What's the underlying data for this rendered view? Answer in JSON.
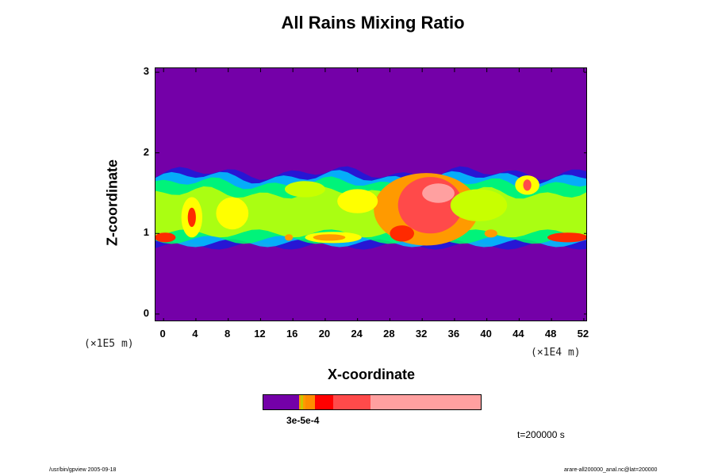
{
  "chart_data": {
    "type": "heatmap",
    "title": "All Rains Mixing Ratio",
    "xlabel": "X-coordinate",
    "ylabel": "Z-coordinate",
    "x_unit": "(×1E4 m)",
    "y_unit": "(×1E5 m)",
    "x_ticks": [
      0,
      4,
      8,
      12,
      16,
      20,
      24,
      28,
      32,
      36,
      40,
      44,
      48,
      52
    ],
    "y_ticks": [
      0,
      1,
      2,
      3
    ],
    "xlim": [
      -1,
      52.5
    ],
    "ylim": [
      -0.1,
      3.05
    ],
    "background_color": "#7400a8",
    "colorscale": [
      "#7400a8",
      "#1a1adc",
      "#00c8ff",
      "#00ff64",
      "#c8ff00",
      "#ffff00",
      "#ff9a00",
      "#ff2a00",
      "#ff4a4a",
      "#ffa0a0"
    ],
    "colorbar_label": "3e-5e-4",
    "colorbar_segments": [
      {
        "color": "#7400a8",
        "weight": 45
      },
      {
        "color": "#ff9a00",
        "weight": 2
      },
      {
        "color": "#c8c800",
        "weight": 3
      },
      {
        "color": "#ff9a00",
        "weight": 3
      },
      {
        "color": "#ff8c00",
        "weight": 12
      },
      {
        "color": "#ff0000",
        "weight": 23
      },
      {
        "color": "#ff4a4a",
        "weight": 46
      },
      {
        "color": "#ffa0a0",
        "weight": 139
      }
    ],
    "time_label": "t=200000 s",
    "features": [
      {
        "x": 32.5,
        "z": 1.3,
        "rx": 6.5,
        "rz": 0.45,
        "level": 6
      },
      {
        "x": 33.0,
        "z": 1.35,
        "rx": 4.0,
        "rz": 0.35,
        "level": 8
      },
      {
        "x": 34.0,
        "z": 1.5,
        "rx": 2.0,
        "rz": 0.12,
        "level": 9
      },
      {
        "x": 29.5,
        "z": 1.0,
        "rx": 1.5,
        "rz": 0.1,
        "level": 7
      },
      {
        "x": 24.0,
        "z": 1.4,
        "rx": 2.5,
        "rz": 0.15,
        "level": 5
      },
      {
        "x": 21.0,
        "z": 0.95,
        "rx": 3.5,
        "rz": 0.07,
        "level": 5
      },
      {
        "x": 20.5,
        "z": 0.95,
        "rx": 2.0,
        "rz": 0.04,
        "level": 6
      },
      {
        "x": 8.5,
        "z": 1.25,
        "rx": 2.0,
        "rz": 0.2,
        "level": 5
      },
      {
        "x": 3.5,
        "z": 1.2,
        "rx": 1.3,
        "rz": 0.25,
        "level": 5
      },
      {
        "x": 3.5,
        "z": 1.2,
        "rx": 0.5,
        "rz": 0.12,
        "level": 7
      },
      {
        "x": 0.2,
        "z": 0.95,
        "rx": 1.3,
        "rz": 0.06,
        "level": 7
      },
      {
        "x": 50.0,
        "z": 0.95,
        "rx": 2.5,
        "rz": 0.06,
        "level": 7
      },
      {
        "x": 45.0,
        "z": 1.6,
        "rx": 1.5,
        "rz": 0.12,
        "level": 5
      },
      {
        "x": 45.0,
        "z": 1.6,
        "rx": 0.5,
        "rz": 0.07,
        "level": 8
      },
      {
        "x": 17.5,
        "z": 1.55,
        "rx": 2.5,
        "rz": 0.1,
        "level": 4
      },
      {
        "x": 39.0,
        "z": 1.35,
        "rx": 3.5,
        "rz": 0.2,
        "level": 4
      },
      {
        "x": 40.5,
        "z": 1.0,
        "rx": 0.8,
        "rz": 0.05,
        "level": 6
      },
      {
        "x": 15.5,
        "z": 0.95,
        "rx": 0.5,
        "rz": 0.04,
        "level": 6
      }
    ]
  },
  "footer": {
    "left": "/usr/bin/gpview 2005-09-18",
    "right": "arare-all200000_anal.nc@lat=200000"
  }
}
